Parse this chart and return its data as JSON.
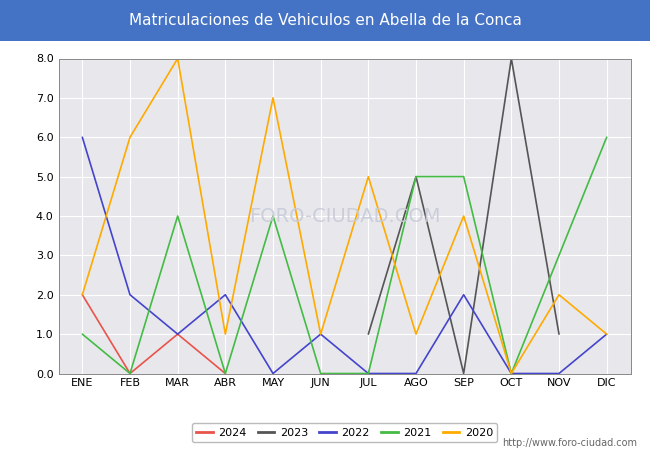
{
  "title": "Matriculaciones de Vehiculos en Abella de la Conca",
  "title_color": "#ffffff",
  "title_bg_color": "#4472c4",
  "months": [
    "ENE",
    "FEB",
    "MAR",
    "ABR",
    "MAY",
    "JUN",
    "JUL",
    "AGO",
    "SEP",
    "OCT",
    "NOV",
    "DIC"
  ],
  "series": {
    "2024": {
      "color": "#e8534a",
      "data": [
        2,
        0,
        1,
        0,
        null,
        null,
        null,
        null,
        null,
        null,
        null,
        null
      ]
    },
    "2023": {
      "color": "#555555",
      "data": [
        null,
        null,
        null,
        null,
        null,
        null,
        1,
        5,
        0,
        8,
        1,
        null
      ]
    },
    "2022": {
      "color": "#4444cc",
      "data": [
        6,
        2,
        1,
        2,
        0,
        1,
        0,
        0,
        2,
        0,
        0,
        1
      ]
    },
    "2021": {
      "color": "#44bb44",
      "data": [
        1,
        0,
        4,
        0,
        4,
        0,
        0,
        5,
        5,
        0,
        3,
        6
      ]
    },
    "2020": {
      "color": "#ffaa00",
      "data": [
        2,
        6,
        8,
        1,
        7,
        1,
        5,
        1,
        4,
        0,
        2,
        1
      ]
    }
  },
  "ylim": [
    0,
    8.0
  ],
  "yticks": [
    0.0,
    1.0,
    2.0,
    3.0,
    4.0,
    5.0,
    6.0,
    7.0,
    8.0
  ],
  "plot_bg_color": "#e8e8ec",
  "grid_color": "#ffffff",
  "fig_bg_color": "#ffffff",
  "watermark_text": "FORO-CIUDAD.COM",
  "watermark_color": "#c8ccd8",
  "url_text": "http://www.foro-ciudad.com",
  "legend_years": [
    "2024",
    "2023",
    "2022",
    "2021",
    "2020"
  ],
  "title_fontsize": 11,
  "tick_fontsize": 8,
  "legend_fontsize": 8,
  "line_width": 1.2
}
